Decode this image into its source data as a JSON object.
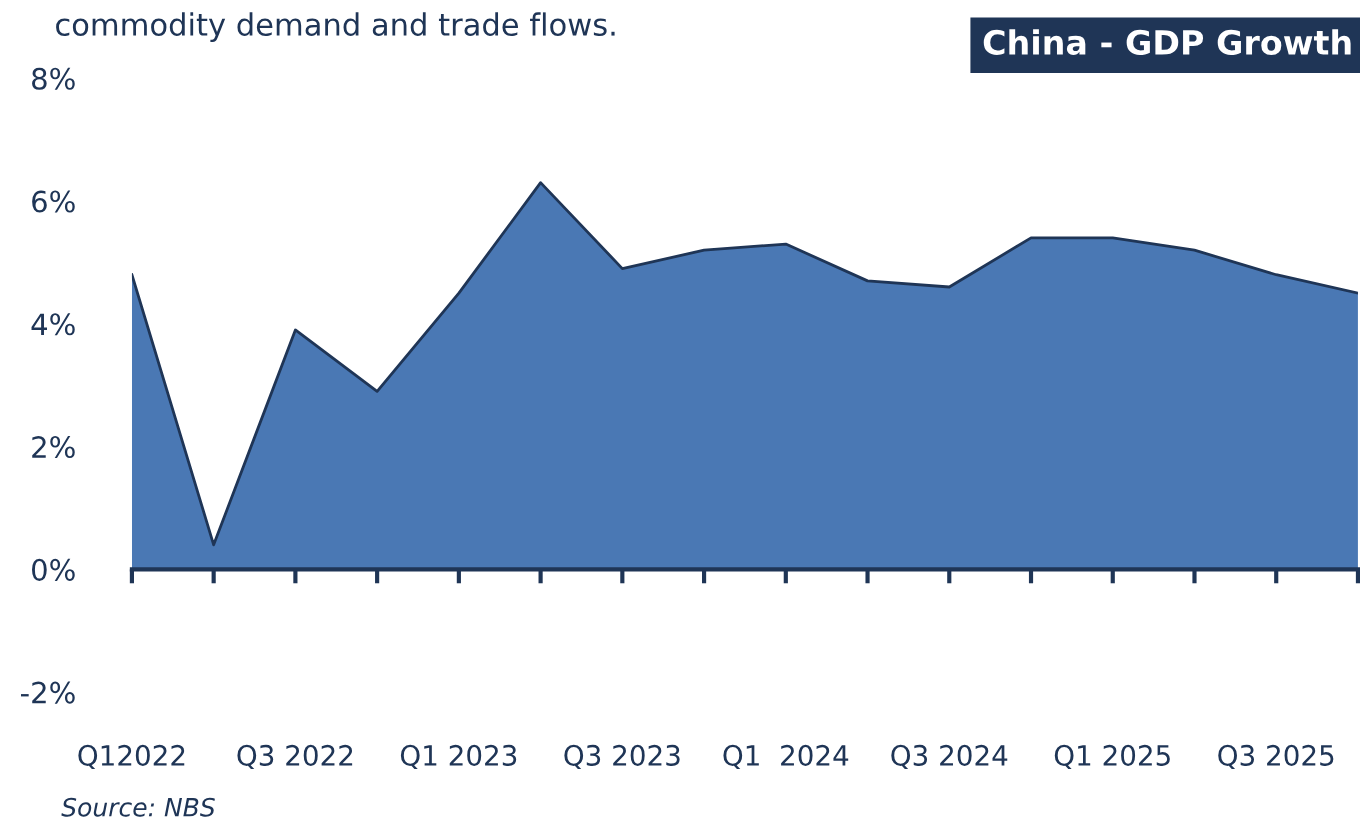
{
  "chart_data": {
    "type": "area",
    "title": "China - GDP Growth",
    "subtitle": "commodity demand and trade flows.",
    "annotations": [
      "Source: NBS"
    ],
    "categories": [
      "Q12022",
      null,
      "Q3 2022",
      null,
      "Q1 2023",
      null,
      "Q3 2023",
      null,
      "Q1  2024",
      null,
      "Q3 2024",
      null,
      "Q1 2025",
      null,
      "Q3 2025",
      null
    ],
    "values": [
      4.8,
      0.4,
      3.9,
      2.9,
      4.5,
      6.3,
      4.9,
      5.2,
      5.3,
      4.7,
      4.6,
      5.4,
      5.4,
      5.2,
      4.8,
      4.5
    ],
    "color": "#4a78b4",
    "ylim": [
      -2,
      8
    ],
    "yticks": [
      {
        "value": -2,
        "label": "-2%"
      },
      {
        "value": 0,
        "label": "0%"
      },
      {
        "value": 2,
        "label": "2%"
      },
      {
        "value": 4,
        "label": "4%"
      },
      {
        "value": 6,
        "label": "6%"
      },
      {
        "value": 8,
        "label": "8%"
      }
    ],
    "grid": false,
    "legend": false
  }
}
